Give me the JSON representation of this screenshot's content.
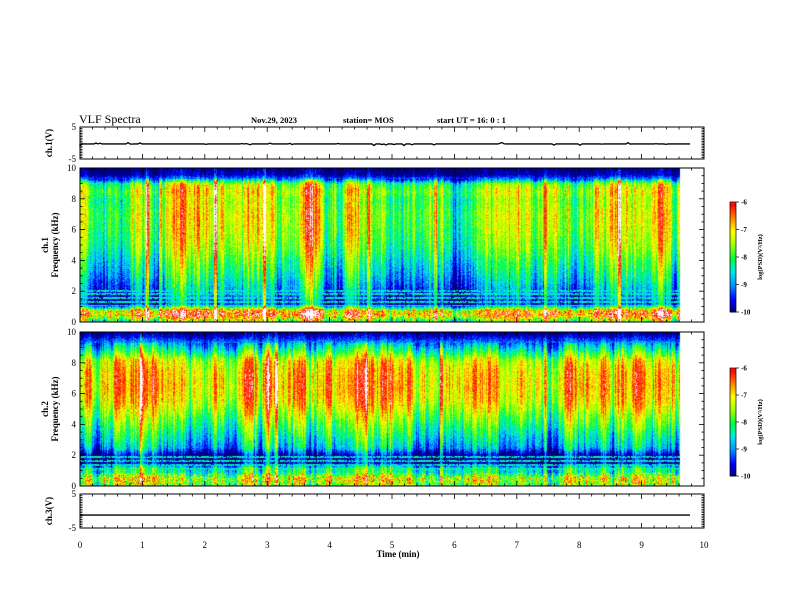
{
  "header": {
    "title": "VLF Spectra",
    "date": "Nov.29, 2023",
    "station": "station= MOS",
    "start": "start  UT  =   16: 0  : 1"
  },
  "chart_data": [
    {
      "type": "line",
      "name": "ch1-voltage",
      "ylabel": "ch.1(V)",
      "ylim": [
        -5,
        5
      ],
      "yticks": [
        "5",
        "-5"
      ],
      "xlim": [
        0,
        10
      ],
      "x_end": 9.8,
      "level": -0.3,
      "spike_amplitude": 0.6
    },
    {
      "type": "heatmap",
      "name": "ch1-spectrogram",
      "ylabel": "ch.1\nFrequency  (kHz)",
      "ylim": [
        0,
        10
      ],
      "yticks": [
        "0",
        "2",
        "4",
        "6",
        "8",
        "10"
      ],
      "xlim": [
        0,
        10
      ],
      "x_end": 9.8,
      "zlim": [
        -10,
        -6
      ],
      "colorbar_label": "log(PSD)(V²/Hz)",
      "colorbar_ticks": [
        "-6",
        "-7",
        "-8",
        "-9",
        "-10"
      ],
      "profile": [
        [
          0,
          -8.2
        ],
        [
          0.5,
          -6.6
        ],
        [
          0.8,
          -7.0
        ],
        [
          1.2,
          -9.4
        ],
        [
          2,
          -8.9
        ],
        [
          3,
          -8.4
        ],
        [
          4,
          -8.0
        ],
        [
          5,
          -7.6
        ],
        [
          6,
          -7.4
        ],
        [
          7,
          -7.3
        ],
        [
          8,
          -7.5
        ],
        [
          8.5,
          -7.2
        ],
        [
          9,
          -7.6
        ],
        [
          9.3,
          -9.0
        ],
        [
          9.6,
          -9.8
        ],
        [
          10,
          -10.0
        ]
      ],
      "bright_columns_min": [
        1.1,
        1.3,
        2.2,
        3.0,
        4.7,
        5.8,
        7.6,
        8.8
      ],
      "horizontal_lines_khz": [
        1.1,
        1.35,
        1.6,
        1.85,
        2.05
      ]
    },
    {
      "type": "heatmap",
      "name": "ch2-spectrogram",
      "ylabel": "ch.2\nFrequency  (kHz)",
      "ylim": [
        0,
        10
      ],
      "yticks": [
        "0",
        "2",
        "4",
        "6",
        "8",
        "10"
      ],
      "xlim": [
        0,
        10
      ],
      "x_end": 9.8,
      "zlim": [
        -10,
        -6
      ],
      "colorbar_label": "log(PSD)(V²/Hz)",
      "colorbar_ticks": [
        "-6",
        "-7",
        "-8",
        "-9",
        "-10"
      ],
      "profile": [
        [
          0,
          -8.0
        ],
        [
          0.5,
          -7.4
        ],
        [
          0.8,
          -8.2
        ],
        [
          1.2,
          -8.4
        ],
        [
          1.5,
          -9.8
        ],
        [
          2,
          -9.9
        ],
        [
          2.5,
          -8.8
        ],
        [
          3.5,
          -8.2
        ],
        [
          4.5,
          -7.6
        ],
        [
          5.5,
          -7.0
        ],
        [
          6.5,
          -6.8
        ],
        [
          7.5,
          -6.9
        ],
        [
          8.2,
          -7.2
        ],
        [
          8.8,
          -8.2
        ],
        [
          9.3,
          -8.9
        ],
        [
          9.7,
          -9.6
        ],
        [
          10,
          -10.0
        ]
      ],
      "bright_columns_min": [
        1.0,
        3.2,
        5.9,
        7.6
      ],
      "horizontal_lines_khz": [
        1.15,
        1.4,
        1.65,
        1.9
      ]
    },
    {
      "type": "line",
      "name": "ch3-voltage",
      "ylabel": "ch.3(V)",
      "ylim": [
        -5,
        5
      ],
      "yticks": [
        "5",
        "-5"
      ],
      "xlim": [
        0,
        10
      ],
      "x_end": 9.8,
      "level": -1.2,
      "spike_amplitude": 0.0
    }
  ],
  "xaxis": {
    "label": "Time  (min)",
    "ticks": [
      "0",
      "1",
      "2",
      "3",
      "4",
      "5",
      "6",
      "7",
      "8",
      "9",
      "10"
    ]
  },
  "colormap": [
    "#000078",
    "#0000ff",
    "#0090ff",
    "#00e8e8",
    "#00ff40",
    "#a0ff00",
    "#ffff00",
    "#ff8000",
    "#ff0000",
    "#ffffff"
  ]
}
